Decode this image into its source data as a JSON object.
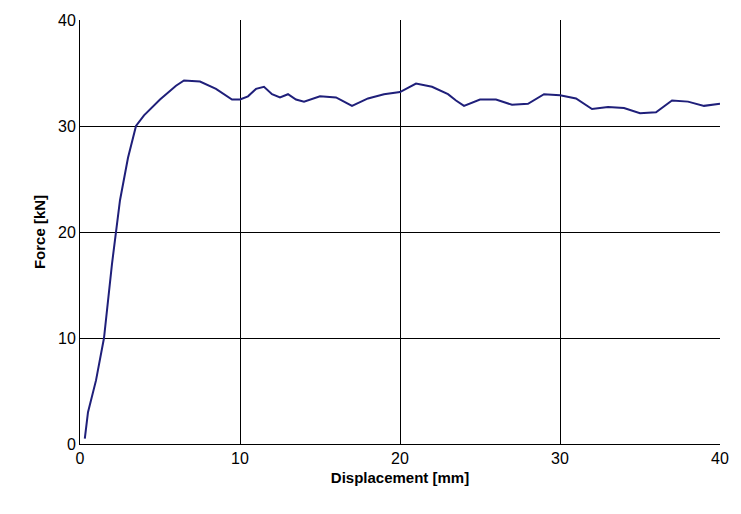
{
  "chart_data": {
    "type": "line",
    "x_label": "Displacement [mm]",
    "y_label": "Force [kN]",
    "x": [
      0.3,
      0.5,
      1,
      1.5,
      2,
      2.5,
      3,
      3.5,
      4,
      5,
      6,
      6.5,
      7.5,
      8.5,
      9.5,
      10,
      10.5,
      11,
      11.5,
      12,
      12.5,
      13,
      13.5,
      14,
      15,
      16,
      16.5,
      17,
      18,
      19,
      20,
      21,
      22,
      23,
      23.5,
      24,
      25,
      26,
      27,
      28,
      29,
      30,
      31,
      32,
      33,
      34,
      35,
      36,
      37,
      38,
      39,
      40
    ],
    "values": [
      0.5,
      3,
      6,
      10,
      17,
      23,
      27,
      30,
      31,
      32.5,
      33.8,
      34.3,
      34.2,
      33.5,
      32.5,
      32.5,
      32.8,
      33.5,
      33.7,
      33,
      32.7,
      33,
      32.5,
      32.3,
      32.8,
      32.7,
      32.3,
      31.9,
      32.6,
      33,
      33.2,
      34,
      33.7,
      33,
      32.4,
      31.9,
      32.5,
      32.5,
      32,
      32.1,
      33,
      32.9,
      32.6,
      31.6,
      31.8,
      31.7,
      31.2,
      31.3,
      32.4,
      32.3,
      31.9,
      32.1
    ],
    "color": "#1f1f7a",
    "xlim": [
      0,
      40
    ],
    "ylim": [
      0,
      40
    ],
    "xticks": [
      0,
      10,
      20,
      30,
      40
    ],
    "yticks": [
      0,
      10,
      20,
      30,
      40
    ],
    "grid": true
  }
}
